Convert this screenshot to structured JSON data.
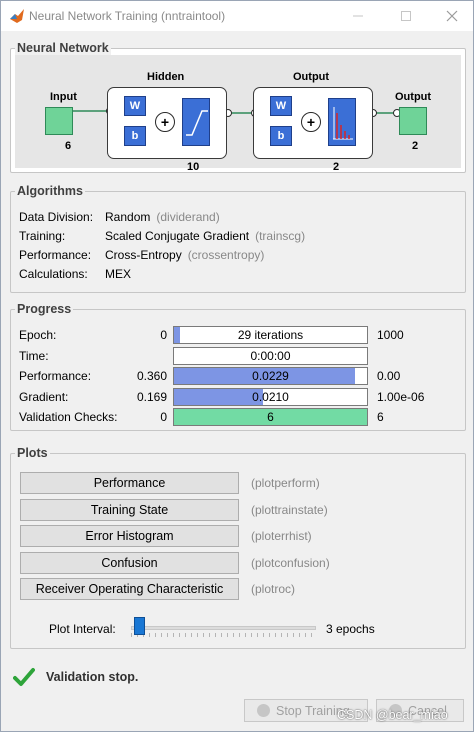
{
  "window": {
    "title": "Neural Network Training (nntraintool)",
    "minimize_icon": "minimize-icon",
    "maximize_icon": "maximize-icon",
    "close_icon": "close-icon"
  },
  "network": {
    "section_title": "Neural Network",
    "input_label": "Input",
    "input_size": "6",
    "hidden_label": "Hidden",
    "hidden_size": "10",
    "output_layer_label": "Output",
    "output_layer_size": "2",
    "output_label": "Output",
    "output_size": "2",
    "weight_label": "W",
    "bias_label": "b",
    "sum_symbol": "+",
    "colors": {
      "io": "#6fd398",
      "blocks": "#3b6fd6"
    }
  },
  "algorithms": {
    "section_title": "Algorithms",
    "rows": [
      {
        "label": "Data Division:",
        "value": "Random",
        "fn": "(dividerand)"
      },
      {
        "label": "Training:",
        "value": "Scaled Conjugate Gradient",
        "fn": "(trainscg)"
      },
      {
        "label": "Performance:",
        "value": "Cross-Entropy",
        "fn": "(crossentropy)"
      },
      {
        "label": "Calculations:",
        "value": "MEX",
        "fn": ""
      }
    ]
  },
  "progress": {
    "section_title": "Progress",
    "rows": [
      {
        "label": "Epoch:",
        "min": "0",
        "text": "29 iterations",
        "max": "1000",
        "fill": 0.029,
        "color": "#7d95e4"
      },
      {
        "label": "Time:",
        "min": "",
        "text": "0:00:00",
        "max": "",
        "fill": 0,
        "color": "#7d95e4"
      },
      {
        "label": "Performance:",
        "min": "0.360",
        "text": "0.0229",
        "max": "0.00",
        "fill": 0.94,
        "color": "#7d95e4"
      },
      {
        "label": "Gradient:",
        "min": "0.169",
        "text": "0.0210",
        "max": "1.00e-06",
        "fill": 0.46,
        "color": "#7d95e4"
      },
      {
        "label": "Validation Checks:",
        "min": "0",
        "text": "6",
        "max": "6",
        "fill": 1.0,
        "color": "#72dba4"
      }
    ]
  },
  "plots": {
    "section_title": "Plots",
    "buttons": [
      {
        "label": "Performance",
        "fn": "(plotperform)"
      },
      {
        "label": "Training State",
        "fn": "(plottrainstate)"
      },
      {
        "label": "Error Histogram",
        "fn": "(ploterrhist)"
      },
      {
        "label": "Confusion",
        "fn": "(plotconfusion)"
      },
      {
        "label": "Receiver Operating Characteristic",
        "fn": "(plotroc)"
      }
    ],
    "interval_label": "Plot Interval:",
    "interval_value": "3 epochs",
    "interval_level": 0.0
  },
  "status": {
    "icon": "checkmark-icon",
    "text": "Validation stop.",
    "color": "#2ea43a"
  },
  "buttons": {
    "stop": "Stop Training",
    "cancel": "Cancel"
  },
  "watermark": "CSDN @bear_miao"
}
